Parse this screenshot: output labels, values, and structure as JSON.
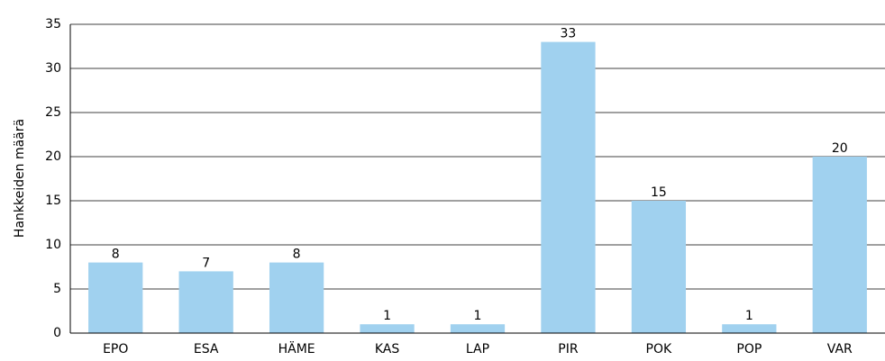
{
  "chart_data": {
    "type": "bar",
    "y_label": "Hankkeiden määrä",
    "categories": [
      "EPO",
      "ESA",
      "HÄME",
      "KAS",
      "LAP",
      "PIR",
      "POK",
      "POP",
      "VAR"
    ],
    "values": [
      8,
      7,
      8,
      1,
      1,
      33,
      15,
      1,
      20
    ],
    "color": "#a0d1ef",
    "ylim": [
      0,
      35
    ],
    "yticks": [
      0,
      5,
      10,
      15,
      20,
      25,
      30,
      35
    ],
    "grid": true
  }
}
